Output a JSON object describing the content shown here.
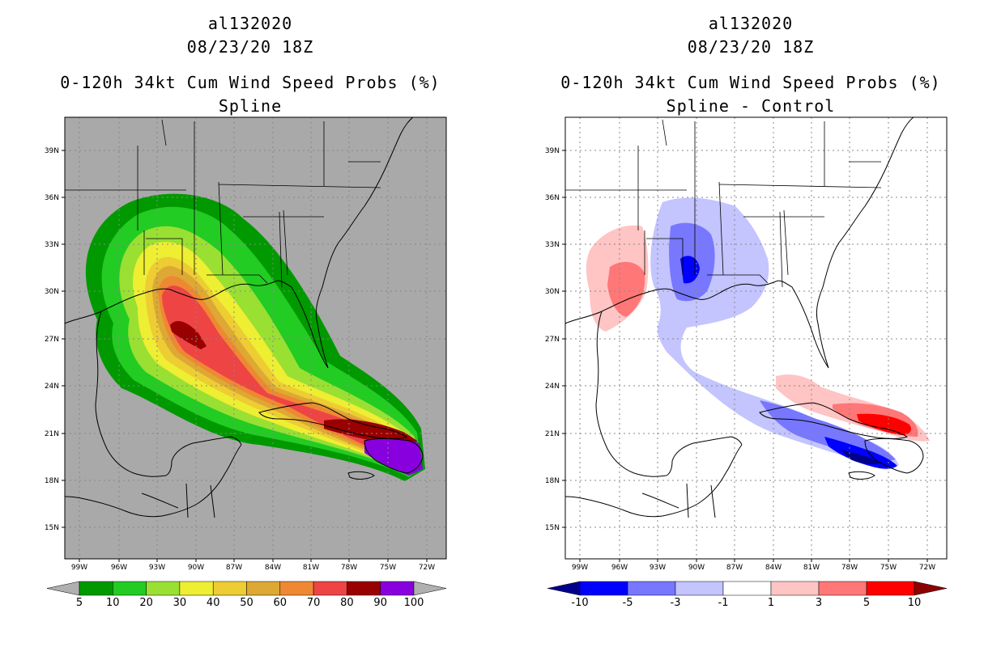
{
  "panels": [
    {
      "storm": "al132020",
      "datetime": "08/23/20 18Z",
      "product": "0-120h 34kt Cum Wind Speed Probs (%)",
      "subtitle": "Spline",
      "background": "#a9a9a9",
      "legend": {
        "colors": [
          "#009900",
          "#22cc22",
          "#99e033",
          "#eeee33",
          "#eecc33",
          "#dda833",
          "#ee8833",
          "#ee4444",
          "#990000",
          "#8800dd"
        ],
        "labels": [
          "5",
          "10",
          "20",
          "30",
          "40",
          "50",
          "60",
          "70",
          "80",
          "90",
          "100"
        ],
        "end_low": "#b0b0b0",
        "end_high": "#b0b0b0"
      }
    },
    {
      "storm": "al132020",
      "datetime": "08/23/20 18Z",
      "product": "0-120h 34kt Cum Wind Speed Probs (%)",
      "subtitle": "Spline - Control",
      "background": "#ffffff",
      "legend": {
        "colors": [
          "#0000ff",
          "#7777ff",
          "#c4c4ff",
          "#ffffff",
          "#ffc4c4",
          "#ff7777",
          "#ff0000"
        ],
        "labels": [
          "-10",
          "-5",
          "-3",
          "-1",
          "1",
          "3",
          "5",
          "10"
        ],
        "end_low": "#00008b",
        "end_high": "#8b0000"
      }
    }
  ],
  "axes": {
    "lat_labels": [
      "39N",
      "36N",
      "33N",
      "30N",
      "27N",
      "24N",
      "21N",
      "18N",
      "15N"
    ],
    "lon_labels": [
      "99W",
      "96W",
      "93W",
      "90W",
      "87W",
      "84W",
      "81W",
      "78W",
      "75W",
      "72W"
    ]
  }
}
